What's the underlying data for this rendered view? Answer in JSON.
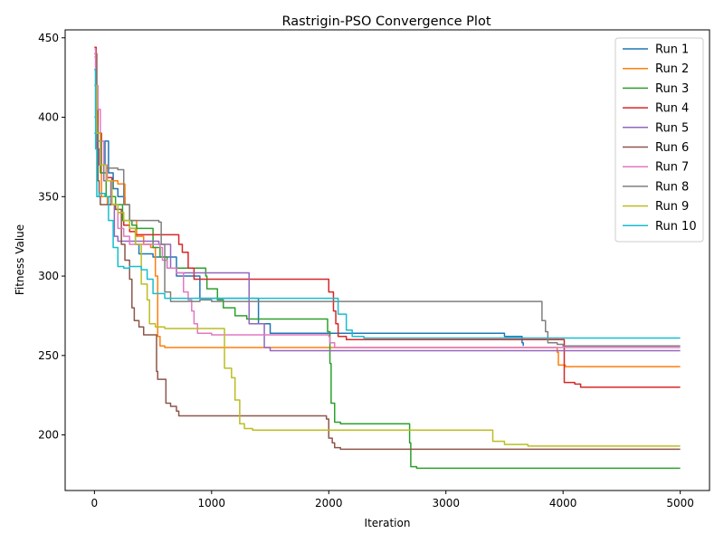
{
  "chart_data": {
    "type": "line",
    "title": "Rastrigin-PSO Convergence Plot",
    "xlabel": "Iteration",
    "ylabel": "Fitness Value",
    "xlim": [
      -250,
      5250
    ],
    "ylim": [
      165,
      455
    ],
    "x_ticks": [
      0,
      1000,
      2000,
      3000,
      4000,
      5000
    ],
    "y_ticks": [
      200,
      250,
      300,
      350,
      400,
      450
    ],
    "grid": false,
    "legend_position": "top-right",
    "series": [
      {
        "name": "Run 1",
        "color": "#1f77b4",
        "points": [
          [
            0,
            430
          ],
          [
            10,
            400
          ],
          [
            20,
            380
          ],
          [
            40,
            370
          ],
          [
            90,
            385
          ],
          [
            120,
            365
          ],
          [
            160,
            355
          ],
          [
            200,
            350
          ],
          [
            260,
            345
          ],
          [
            300,
            330
          ],
          [
            350,
            320
          ],
          [
            380,
            314
          ],
          [
            500,
            312
          ],
          [
            600,
            312
          ],
          [
            700,
            300
          ],
          [
            900,
            286
          ],
          [
            1400,
            270
          ],
          [
            1500,
            264
          ],
          [
            3500,
            262
          ],
          [
            3650,
            258
          ],
          [
            3660,
            256
          ]
        ]
      },
      {
        "name": "Run 2",
        "color": "#ff7f0e",
        "points": [
          [
            0,
            438
          ],
          [
            10,
            400
          ],
          [
            30,
            370
          ],
          [
            60,
            350
          ],
          [
            110,
            345
          ],
          [
            150,
            360
          ],
          [
            200,
            358
          ],
          [
            260,
            345
          ],
          [
            300,
            335
          ],
          [
            360,
            325
          ],
          [
            420,
            320
          ],
          [
            480,
            318
          ],
          [
            520,
            300
          ],
          [
            540,
            262
          ],
          [
            560,
            256
          ],
          [
            600,
            255
          ],
          [
            2000,
            255
          ],
          [
            3950,
            252
          ],
          [
            3960,
            244
          ],
          [
            4020,
            243
          ],
          [
            5000,
            243
          ]
        ]
      },
      {
        "name": "Run 3",
        "color": "#2ca02c",
        "points": [
          [
            0,
            420
          ],
          [
            20,
            390
          ],
          [
            50,
            365
          ],
          [
            100,
            350
          ],
          [
            180,
            345
          ],
          [
            240,
            335
          ],
          [
            320,
            332
          ],
          [
            360,
            330
          ],
          [
            480,
            330
          ],
          [
            500,
            318
          ],
          [
            560,
            312
          ],
          [
            620,
            305
          ],
          [
            700,
            305
          ],
          [
            950,
            300
          ],
          [
            960,
            292
          ],
          [
            1050,
            285
          ],
          [
            1100,
            280
          ],
          [
            1200,
            275
          ],
          [
            1300,
            273
          ],
          [
            1950,
            273
          ],
          [
            1990,
            265
          ],
          [
            2010,
            245
          ],
          [
            2020,
            220
          ],
          [
            2050,
            208
          ],
          [
            2100,
            207
          ],
          [
            2650,
            207
          ],
          [
            2690,
            195
          ],
          [
            2700,
            180
          ],
          [
            2750,
            179
          ],
          [
            5000,
            179
          ]
        ]
      },
      {
        "name": "Run 4",
        "color": "#d62728",
        "points": [
          [
            0,
            444
          ],
          [
            15,
            410
          ],
          [
            30,
            390
          ],
          [
            60,
            370
          ],
          [
            100,
            362
          ],
          [
            150,
            345
          ],
          [
            200,
            340
          ],
          [
            250,
            332
          ],
          [
            300,
            328
          ],
          [
            350,
            326
          ],
          [
            700,
            326
          ],
          [
            720,
            320
          ],
          [
            750,
            315
          ],
          [
            800,
            305
          ],
          [
            850,
            298
          ],
          [
            1950,
            298
          ],
          [
            2000,
            290
          ],
          [
            2040,
            278
          ],
          [
            2060,
            270
          ],
          [
            2080,
            262
          ],
          [
            2150,
            260
          ],
          [
            4000,
            260
          ],
          [
            4010,
            233
          ],
          [
            4100,
            232
          ],
          [
            4150,
            230
          ],
          [
            5000,
            230
          ]
        ]
      },
      {
        "name": "Run 5",
        "color": "#9467bd",
        "points": [
          [
            0,
            390
          ],
          [
            20,
            380
          ],
          [
            40,
            370
          ],
          [
            80,
            360
          ],
          [
            140,
            345
          ],
          [
            170,
            325
          ],
          [
            200,
            322
          ],
          [
            300,
            322
          ],
          [
            550,
            320
          ],
          [
            650,
            305
          ],
          [
            700,
            302
          ],
          [
            1300,
            302
          ],
          [
            1320,
            270
          ],
          [
            1400,
            270
          ],
          [
            1450,
            255
          ],
          [
            1500,
            253
          ],
          [
            5000,
            253
          ]
        ]
      },
      {
        "name": "Run 6",
        "color": "#8c564b",
        "points": [
          [
            0,
            440
          ],
          [
            20,
            395
          ],
          [
            30,
            360
          ],
          [
            40,
            350
          ],
          [
            50,
            345
          ],
          [
            100,
            345
          ],
          [
            180,
            342
          ],
          [
            230,
            320
          ],
          [
            260,
            310
          ],
          [
            300,
            298
          ],
          [
            320,
            280
          ],
          [
            340,
            272
          ],
          [
            380,
            268
          ],
          [
            420,
            263
          ],
          [
            520,
            263
          ],
          [
            530,
            240
          ],
          [
            540,
            235
          ],
          [
            600,
            235
          ],
          [
            610,
            220
          ],
          [
            650,
            218
          ],
          [
            700,
            215
          ],
          [
            720,
            212
          ],
          [
            1950,
            212
          ],
          [
            1980,
            210
          ],
          [
            2000,
            198
          ],
          [
            2030,
            195
          ],
          [
            2050,
            192
          ],
          [
            2100,
            191
          ],
          [
            5000,
            191
          ]
        ]
      },
      {
        "name": "Run 7",
        "color": "#e377c2",
        "points": [
          [
            0,
            443
          ],
          [
            10,
            420
          ],
          [
            30,
            405
          ],
          [
            50,
            385
          ],
          [
            80,
            370
          ],
          [
            110,
            360
          ],
          [
            150,
            345
          ],
          [
            200,
            330
          ],
          [
            250,
            325
          ],
          [
            300,
            320
          ],
          [
            560,
            318
          ],
          [
            580,
            310
          ],
          [
            620,
            305
          ],
          [
            700,
            302
          ],
          [
            760,
            290
          ],
          [
            800,
            285
          ],
          [
            830,
            278
          ],
          [
            850,
            270
          ],
          [
            880,
            264
          ],
          [
            1000,
            263
          ],
          [
            2000,
            262
          ],
          [
            2010,
            258
          ],
          [
            2050,
            255
          ],
          [
            5000,
            255
          ]
        ]
      },
      {
        "name": "Run 8",
        "color": "#7f7f7f",
        "points": [
          [
            0,
            400
          ],
          [
            20,
            385
          ],
          [
            60,
            370
          ],
          [
            100,
            368
          ],
          [
            200,
            367
          ],
          [
            250,
            345
          ],
          [
            300,
            335
          ],
          [
            550,
            334
          ],
          [
            570,
            320
          ],
          [
            600,
            290
          ],
          [
            650,
            284
          ],
          [
            900,
            285
          ],
          [
            1000,
            284
          ],
          [
            3800,
            284
          ],
          [
            3820,
            272
          ],
          [
            3850,
            265
          ],
          [
            3870,
            258
          ],
          [
            3950,
            257
          ],
          [
            4000,
            256
          ],
          [
            5000,
            256
          ]
        ]
      },
      {
        "name": "Run 9",
        "color": "#bcbd22",
        "points": [
          [
            0,
            420
          ],
          [
            20,
            390
          ],
          [
            50,
            370
          ],
          [
            100,
            360
          ],
          [
            150,
            345
          ],
          [
            200,
            340
          ],
          [
            250,
            335
          ],
          [
            300,
            330
          ],
          [
            350,
            320
          ],
          [
            400,
            295
          ],
          [
            450,
            285
          ],
          [
            470,
            270
          ],
          [
            520,
            268
          ],
          [
            600,
            267
          ],
          [
            1100,
            267
          ],
          [
            1110,
            242
          ],
          [
            1170,
            236
          ],
          [
            1200,
            222
          ],
          [
            1240,
            207
          ],
          [
            1280,
            204
          ],
          [
            1350,
            203
          ],
          [
            3350,
            203
          ],
          [
            3400,
            196
          ],
          [
            3500,
            194
          ],
          [
            3700,
            193
          ],
          [
            5000,
            193
          ]
        ]
      },
      {
        "name": "Run 10",
        "color": "#17becf",
        "points": [
          [
            0,
            430
          ],
          [
            10,
            380
          ],
          [
            20,
            350
          ],
          [
            40,
            352
          ],
          [
            90,
            350
          ],
          [
            120,
            335
          ],
          [
            160,
            318
          ],
          [
            200,
            306
          ],
          [
            250,
            305
          ],
          [
            300,
            306
          ],
          [
            400,
            304
          ],
          [
            450,
            298
          ],
          [
            500,
            289
          ],
          [
            600,
            286
          ],
          [
            2050,
            286
          ],
          [
            2080,
            276
          ],
          [
            2150,
            266
          ],
          [
            2200,
            262
          ],
          [
            2300,
            261
          ],
          [
            5000,
            261
          ]
        ]
      }
    ]
  }
}
